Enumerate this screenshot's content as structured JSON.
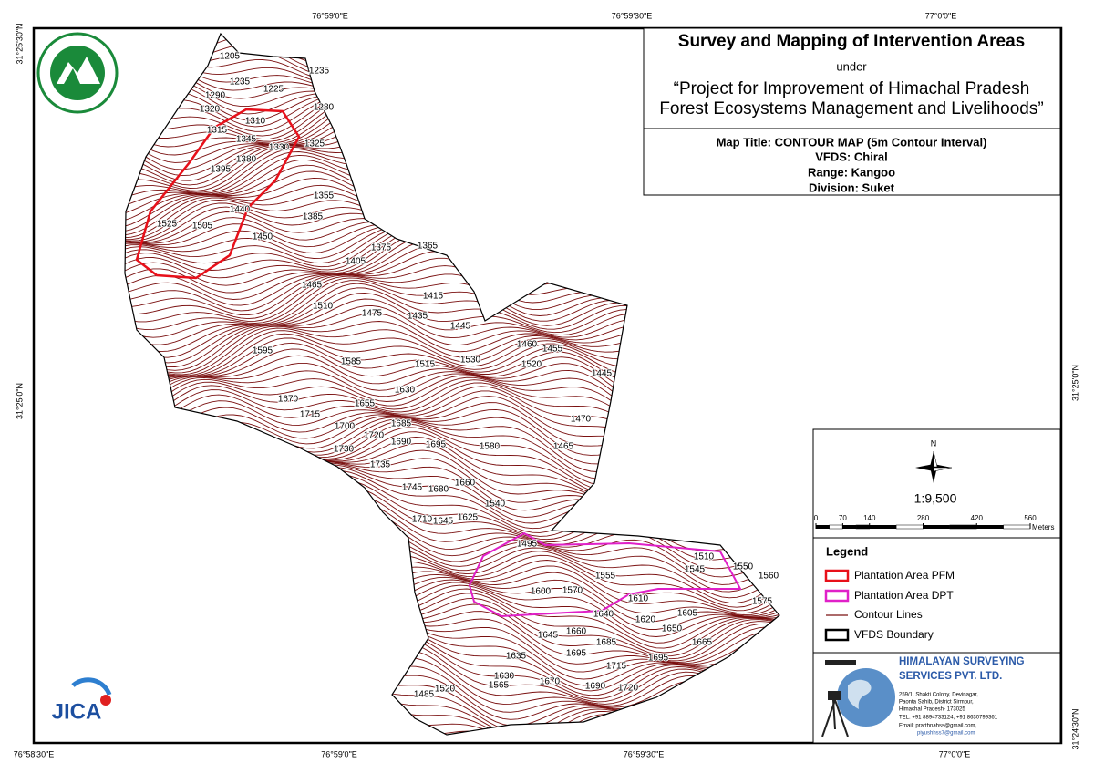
{
  "graticule": {
    "top": [
      "76°59'0\"E",
      "76°59'30\"E",
      "77°0'0\"E"
    ],
    "bottom": [
      "76°58'30\"E",
      "76°59'0\"E",
      "76°59'30\"E",
      "77°0'0\"E"
    ],
    "left": [
      "31°25'30\"N",
      "31°25'0\"N"
    ],
    "right": [
      "31°25'0\"N",
      "31°24'30\"N"
    ]
  },
  "title_block": {
    "title": "Survey and Mapping of Intervention Areas",
    "under": "under",
    "project_line1": "“Project for Improvement of Himachal Pradesh",
    "project_line2": "Forest Ecosystems Management and Livelihoods”"
  },
  "map_info": {
    "map_title": "Map Title: CONTOUR MAP (5m Contour Interval)",
    "vfds": "VFDS: Chiral",
    "range": "Range: Kangoo",
    "division": "Division: Suket"
  },
  "north": "N",
  "scale": "1:9,500",
  "scale_bar": {
    "ticks": [
      0,
      70,
      140,
      280,
      420,
      560
    ],
    "unit": "Meters"
  },
  "legend": {
    "title": "Legend",
    "items": [
      "Plantation Area PFM",
      "Plantation Area DPT",
      "Contour Lines",
      "VFDS Boundary"
    ]
  },
  "company": {
    "name_line1": "HIMALAYAN SURVEYING",
    "name_line2": "SERVICES PVT. LTD.",
    "address": [
      "259/1, Shakti Colony, Devinagar,",
      "Paonta Sahib, District Sirmour,",
      "Himachal Pradesh- 173025",
      "TEL: +91 8894733124, +91 8630799361",
      "Email: prarthnahss@gmail.com,",
      "piyushhss7@gmail.com"
    ]
  },
  "logos": {
    "jica": "JICA"
  },
  "contour_labels": [
    1205,
    1235,
    1225,
    1235,
    1280,
    1290,
    1320,
    1315,
    1310,
    1345,
    1330,
    1325,
    1380,
    1395,
    1355,
    1385,
    1440,
    1450,
    1525,
    1505,
    1375,
    1365,
    1405,
    1465,
    1510,
    1475,
    1415,
    1435,
    1445,
    1460,
    1455,
    1520,
    1445,
    1595,
    1585,
    1515,
    1530,
    1630,
    1670,
    1655,
    1715,
    1685,
    1700,
    1720,
    1690,
    1695,
    1580,
    1465,
    1470,
    1730,
    1735,
    1745,
    1680,
    1660,
    1540,
    1710,
    1645,
    1625,
    1495,
    1510,
    1545,
    1550,
    1560,
    1555,
    1600,
    1570,
    1575,
    1610,
    1640,
    1620,
    1605,
    1650,
    1645,
    1660,
    1665,
    1685,
    1695,
    1695,
    1635,
    1715,
    1630,
    1670,
    1565,
    1520,
    1690,
    1720,
    1485
  ]
}
